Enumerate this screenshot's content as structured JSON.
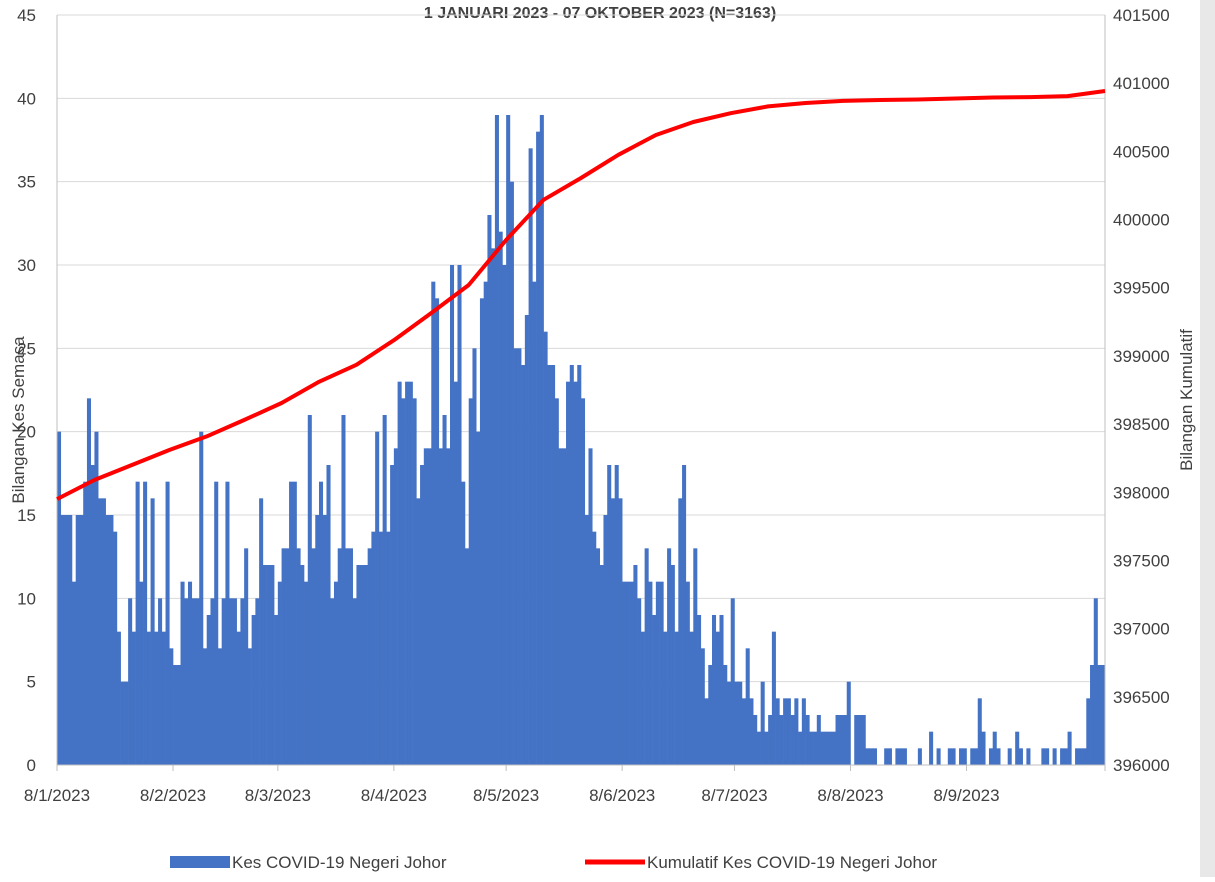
{
  "chart_data": {
    "type": "bar_line",
    "title": "1 JANUARI 2023 - 07 OKTOBER 2023 (N=3163)",
    "y_label": "Bilangan Kes Semasa",
    "y2_label": "Bilangan Kumulatif",
    "x": [
      0,
      1,
      2,
      3,
      4,
      5,
      6,
      7,
      8,
      9,
      10,
      11,
      12,
      13,
      14,
      15,
      16,
      17,
      18,
      19,
      20,
      21,
      22,
      23,
      24,
      25,
      26,
      27,
      28,
      29,
      30,
      31,
      32,
      33,
      34,
      35,
      36,
      37,
      38,
      39,
      40,
      41,
      42,
      43,
      44,
      45,
      46,
      47,
      48,
      49,
      50,
      51,
      52,
      53,
      54,
      55,
      56,
      57,
      58,
      59,
      60,
      61,
      62,
      63,
      64,
      65,
      66,
      67,
      68,
      69,
      70,
      71,
      72,
      73,
      74,
      75,
      76,
      77,
      78,
      79,
      80,
      81,
      82,
      83,
      84,
      85,
      86,
      87,
      88,
      89,
      90,
      91,
      92,
      93,
      94,
      95,
      96,
      97,
      98,
      99,
      100,
      101,
      102,
      103,
      104,
      105,
      106,
      107,
      108,
      109,
      110,
      111,
      112,
      113,
      114,
      115,
      116,
      117,
      118,
      119,
      120,
      121,
      122,
      123,
      124,
      125,
      126,
      127,
      128,
      129,
      130,
      131,
      132,
      133,
      134,
      135,
      136,
      137,
      138,
      139,
      140,
      141,
      142,
      143,
      144,
      145,
      146,
      147,
      148,
      149,
      150,
      151,
      152,
      153,
      154,
      155,
      156,
      157,
      158,
      159,
      160,
      161,
      162,
      163,
      164,
      165,
      166,
      167,
      168,
      169,
      170,
      171,
      172,
      173,
      174,
      175,
      176,
      177,
      178,
      179,
      180,
      181,
      182,
      183,
      184,
      185,
      186,
      187,
      188,
      189,
      190,
      191,
      192,
      193,
      194,
      195,
      196,
      197,
      198,
      199,
      200,
      201,
      202,
      203,
      204,
      205,
      206,
      207,
      208,
      209,
      210,
      211,
      212,
      213,
      214,
      215,
      216,
      217,
      218,
      219,
      220,
      221,
      222,
      223,
      224,
      225,
      226,
      227,
      228,
      229,
      230,
      231,
      232,
      233,
      234,
      235,
      236,
      237,
      238,
      239,
      240,
      241,
      242,
      243,
      244,
      245,
      246,
      247,
      248,
      249,
      250,
      251,
      252,
      253,
      254,
      255,
      256,
      257,
      258,
      259,
      260,
      261,
      262,
      263,
      264,
      265,
      266,
      267,
      268,
      269,
      270,
      271,
      272,
      273,
      274,
      275,
      276,
      277,
      278,
      279
    ],
    "xlim": [
      0,
      280
    ],
    "xticks": [
      {
        "value": 0,
        "label": "8/1/2023"
      },
      {
        "value": 31,
        "label": "8/2/2023"
      },
      {
        "value": 59,
        "label": "8/3/2023"
      },
      {
        "value": 90,
        "label": "8/4/2023"
      },
      {
        "value": 120,
        "label": "8/5/2023"
      },
      {
        "value": 151,
        "label": "8/6/2023"
      },
      {
        "value": 181,
        "label": "8/7/2023"
      },
      {
        "value": 212,
        "label": "8/8/2023"
      },
      {
        "value": 243,
        "label": "8/9/2023"
      }
    ],
    "ylim": [
      0,
      45
    ],
    "yticks": [
      0,
      5,
      10,
      15,
      20,
      25,
      30,
      35,
      40,
      45
    ],
    "y2lim": [
      396000,
      401500
    ],
    "y2ticks": [
      396000,
      396500,
      397000,
      397500,
      398000,
      398500,
      399000,
      399500,
      400000,
      400500,
      401000,
      401500
    ],
    "grid": true,
    "series": [
      {
        "name": "Kes COVID-19 Negeri Johor",
        "color": "#4472c4",
        "values": [
          20,
          15,
          15,
          15,
          11,
          15,
          15,
          17,
          22,
          18,
          20,
          16,
          16,
          15,
          15,
          14,
          8,
          5,
          5,
          10,
          8,
          17,
          11,
          17,
          8,
          16,
          8,
          10,
          8,
          17,
          7,
          6,
          6,
          11,
          10,
          11,
          10,
          10,
          20,
          7,
          9,
          10,
          17,
          7,
          10,
          17,
          10,
          10,
          8,
          10,
          13,
          7,
          9,
          10,
          16,
          12,
          12,
          12,
          9,
          11,
          13,
          13,
          17,
          17,
          13,
          12,
          11,
          21,
          13,
          15,
          17,
          15,
          18,
          10,
          11,
          13,
          21,
          13,
          13,
          10,
          12,
          12,
          12,
          13,
          14,
          20,
          14,
          21,
          14,
          18,
          19,
          23,
          22,
          23,
          23,
          22,
          16,
          18,
          19,
          19,
          29,
          28,
          19,
          21,
          19,
          30,
          23,
          30,
          17,
          13,
          22,
          25,
          20,
          28,
          29,
          33,
          31,
          39,
          32,
          30,
          39,
          35,
          25,
          25,
          24,
          27,
          37,
          29,
          38,
          39,
          26,
          24,
          24,
          22,
          19,
          19,
          23,
          24,
          23,
          24,
          22,
          15,
          19,
          14,
          13,
          12,
          15,
          18,
          16,
          18,
          16,
          11,
          11,
          11,
          12,
          10,
          8,
          13,
          11,
          9,
          11,
          11,
          8,
          13,
          12,
          8,
          16,
          18,
          11,
          8,
          13,
          9,
          7,
          4,
          6,
          9,
          8,
          9,
          6,
          5,
          10,
          5,
          5,
          4,
          7,
          4,
          3,
          2,
          5,
          2,
          3,
          8,
          4,
          3,
          4,
          4,
          3,
          4,
          2,
          4,
          3,
          2,
          2,
          3,
          2,
          2,
          2,
          2,
          3,
          3,
          3,
          5,
          0,
          3,
          3,
          3,
          1,
          1,
          1,
          0,
          0,
          1,
          1,
          0,
          1,
          1,
          1,
          0,
          0,
          0,
          1,
          0,
          0,
          2,
          0,
          1,
          0,
          0,
          1,
          1,
          0,
          1,
          1,
          0,
          1,
          1,
          4,
          2,
          0,
          1,
          2,
          1,
          0,
          0,
          1,
          0,
          2,
          1,
          0,
          1,
          0,
          0,
          0,
          1,
          1,
          0,
          1,
          0,
          1,
          1,
          2,
          0,
          1,
          1,
          1,
          4,
          6,
          10,
          6,
          6
        ]
      },
      {
        "name": "Kumulatif Kes COVID-19 Negeri Johor",
        "color": "#ff0000",
        "axis": "y2",
        "x": [
          0,
          10,
          20,
          30,
          40,
          50,
          60,
          70,
          80,
          90,
          100,
          110,
          120,
          130,
          140,
          150,
          160,
          170,
          180,
          190,
          200,
          210,
          220,
          230,
          240,
          250,
          260,
          270,
          280
        ],
        "values": [
          397950,
          398090,
          398200,
          398310,
          398410,
          398530,
          398655,
          398810,
          398935,
          399115,
          399315,
          399520,
          399850,
          400145,
          400305,
          400475,
          400620,
          400715,
          400780,
          400830,
          400855,
          400870,
          400877,
          400880,
          400888,
          400895,
          400898,
          400905,
          400943
        ]
      }
    ]
  }
}
